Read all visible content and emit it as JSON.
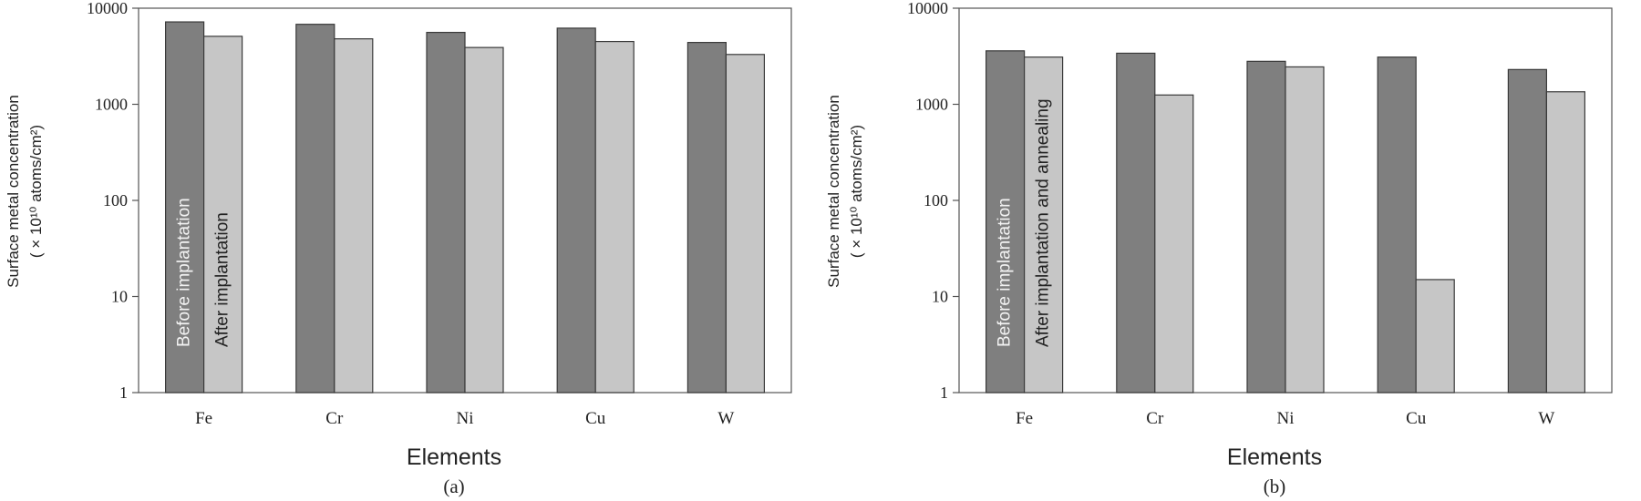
{
  "chart_data": [
    {
      "type": "bar",
      "caption": "(a)",
      "xlabel": "Elements",
      "ylabel_line1": "Surface metal concentration",
      "ylabel_line2": "( × 10¹⁰ atoms/cm²)",
      "yscale": "log",
      "ylim": [
        1,
        10000
      ],
      "yticks": [
        "1",
        "10",
        "100",
        "1000",
        "10000"
      ],
      "categories": [
        "Fe",
        "Cr",
        "Ni",
        "Cu",
        "W"
      ],
      "series": [
        {
          "name": "Before implantation",
          "color": "#7f7f7f",
          "values": [
            7200,
            6800,
            5600,
            6200,
            4400
          ]
        },
        {
          "name": "After implantation",
          "color": "#c6c6c6",
          "values": [
            5100,
            4800,
            3900,
            4500,
            3300
          ]
        }
      ],
      "legend": "vertical labels inside first category bars"
    },
    {
      "type": "bar",
      "caption": "(b)",
      "xlabel": "Elements",
      "ylabel_line1": "Surface metal concentration",
      "ylabel_line2": "( × 10¹⁰ atoms/cm²)",
      "yscale": "log",
      "ylim": [
        1,
        10000
      ],
      "yticks": [
        "1",
        "10",
        "100",
        "1000",
        "10000"
      ],
      "categories": [
        "Fe",
        "Cr",
        "Ni",
        "Cu",
        "W"
      ],
      "series": [
        {
          "name": "Before implantation",
          "color": "#7f7f7f",
          "values": [
            3600,
            3400,
            2800,
            3100,
            2300
          ]
        },
        {
          "name": "After implantation and annealing",
          "color": "#c6c6c6",
          "values": [
            3100,
            1250,
            2450,
            15,
            1350
          ]
        }
      ],
      "legend": "vertical labels inside first category bars"
    }
  ]
}
